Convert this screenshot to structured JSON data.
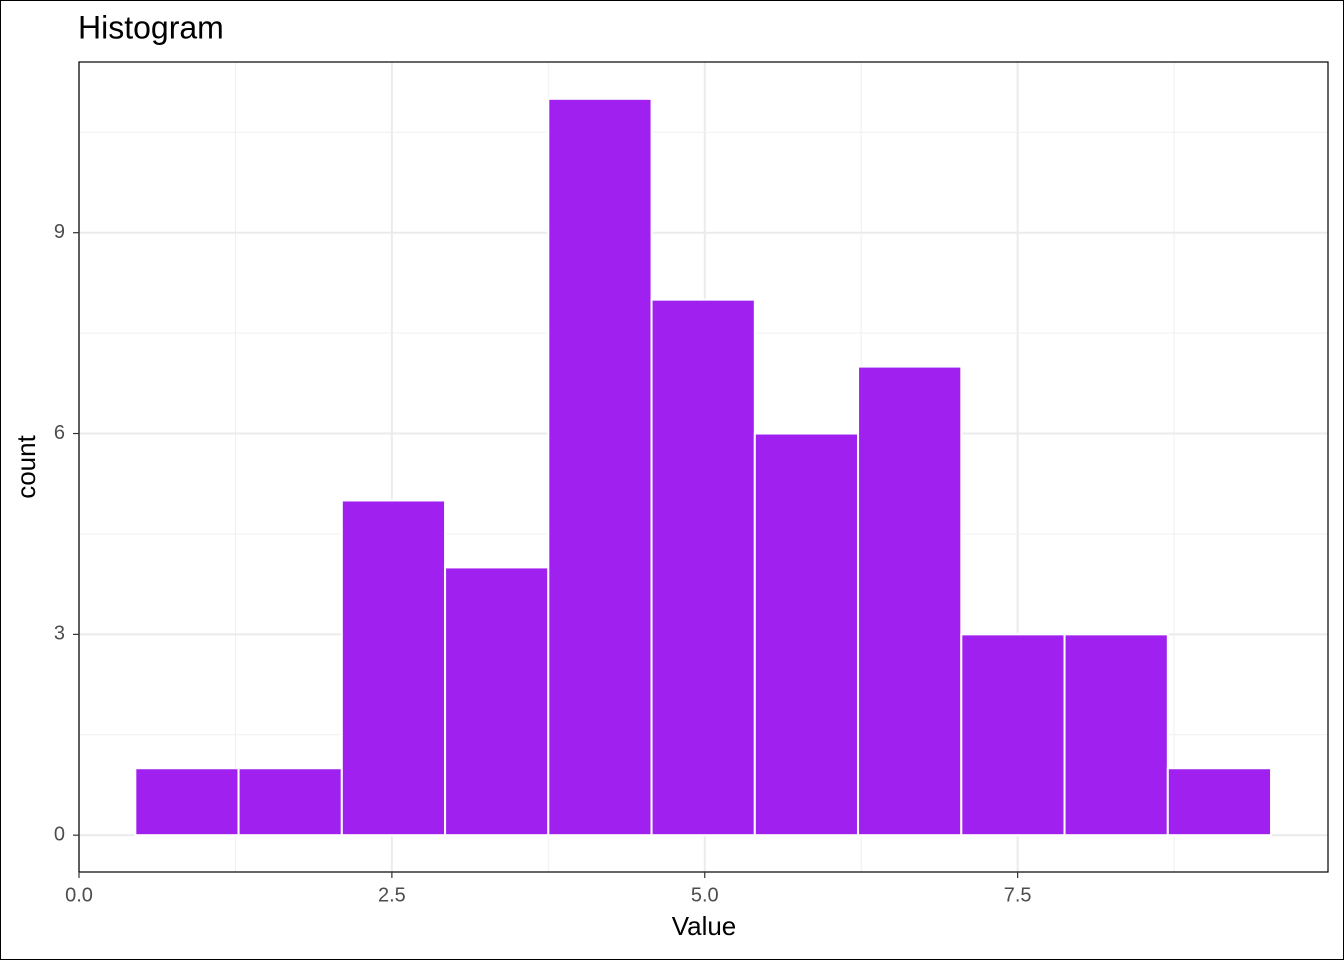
{
  "chart_data": {
    "type": "histogram",
    "title": "Histogram",
    "x_label": "Value",
    "y_label": "count",
    "bins": [
      0.45,
      1.275,
      2.1,
      2.925,
      3.75,
      4.575,
      5.4,
      6.225,
      7.05,
      7.875,
      8.7,
      9.525
    ],
    "values": [
      1,
      1,
      5,
      4,
      11,
      8,
      6,
      7,
      3,
      3,
      1
    ],
    "color": "#a020f0",
    "xlim": [
      0,
      9.98
    ],
    "ylim": [
      -0.55,
      11.55
    ],
    "xticks": [
      {
        "value": 0,
        "label": "0.0"
      },
      2.5,
      {
        "value": 5,
        "label": "5.0"
      },
      7.5
    ],
    "yticks": [
      0,
      3,
      6,
      9
    ],
    "grid": true
  }
}
